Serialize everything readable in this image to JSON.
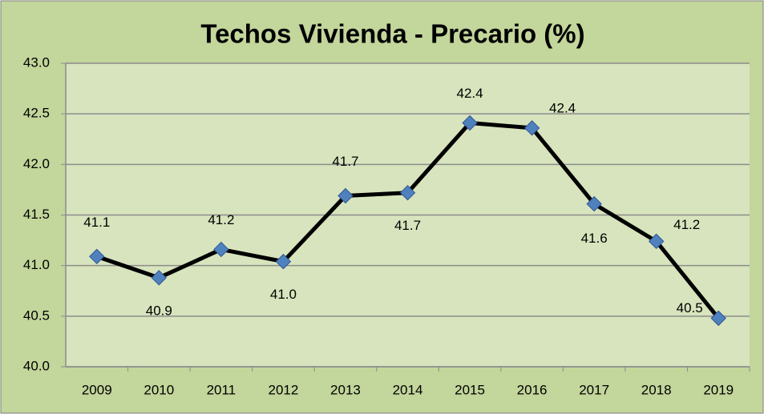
{
  "chart_data": {
    "type": "line",
    "title": "Techos Vivienda - Precario (%)",
    "categories": [
      "2009",
      "2010",
      "2011",
      "2012",
      "2013",
      "2014",
      "2015",
      "2016",
      "2017",
      "2018",
      "2019"
    ],
    "series": [
      {
        "name": "Precario",
        "color": "#000000",
        "marker_color": "#4f81bd",
        "values": [
          41.09,
          40.88,
          41.16,
          41.04,
          41.69,
          41.72,
          42.41,
          42.36,
          41.61,
          41.24,
          40.48
        ],
        "value_labels": [
          "41.1",
          "40.9",
          "41.2",
          "41.0",
          "41.7",
          "41.7",
          "42.4",
          "42.4",
          "41.6",
          "41.2",
          "40.5"
        ]
      }
    ],
    "ylim": [
      40.0,
      43.0
    ],
    "yticks": [
      {
        "value": 40,
        "label": "40.0"
      },
      {
        "value": 40.5,
        "label": "40.5"
      },
      {
        "value": 41,
        "label": "41.0"
      },
      {
        "value": 41.5,
        "label": "41.5"
      },
      {
        "value": 42,
        "label": "42.0"
      },
      {
        "value": 42.5,
        "label": "42.5"
      },
      {
        "value": 43,
        "label": "43.0"
      }
    ],
    "grid": true
  }
}
